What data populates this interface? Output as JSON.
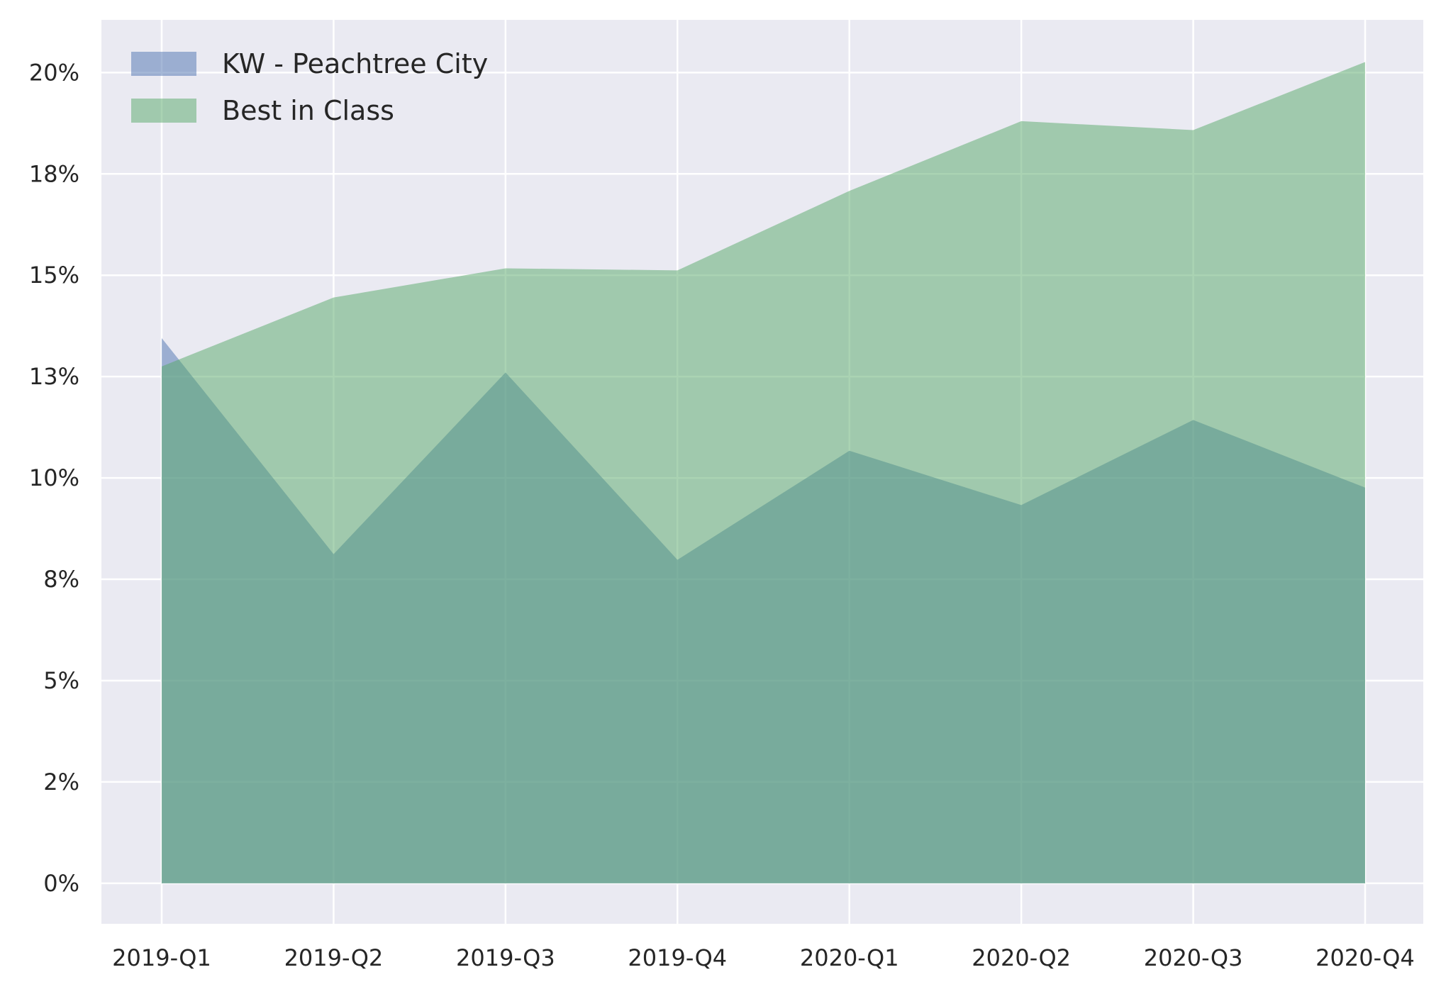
{
  "chart_data": {
    "type": "area",
    "categories": [
      "2019-Q1",
      "2019-Q2",
      "2019-Q3",
      "2019-Q4",
      "2020-Q1",
      "2020-Q2",
      "2020-Q3",
      "2020-Q4"
    ],
    "series": [
      {
        "name": "KW - Peachtree City",
        "values": [
          13.45,
          8.12,
          12.6,
          7.98,
          10.67,
          9.33,
          11.43,
          9.76
        ],
        "color": "#4c72b0"
      },
      {
        "name": "Best in Class",
        "values": [
          12.75,
          14.45,
          15.17,
          15.12,
          17.08,
          18.8,
          18.58,
          20.26
        ],
        "color": "#55a868"
      }
    ],
    "yticks": [
      0,
      2.5,
      5,
      7.5,
      10,
      12.5,
      15,
      17.5,
      20
    ],
    "ytick_labels": [
      "0%",
      "2%",
      "5%",
      "8%",
      "10%",
      "13%",
      "15%",
      "18%",
      "20%"
    ],
    "ylim": [
      -1,
      21.3
    ],
    "grid": true,
    "legend_position": "top-left",
    "background_color": "#eaeaf2",
    "title": "",
    "xlabel": "",
    "ylabel": ""
  }
}
